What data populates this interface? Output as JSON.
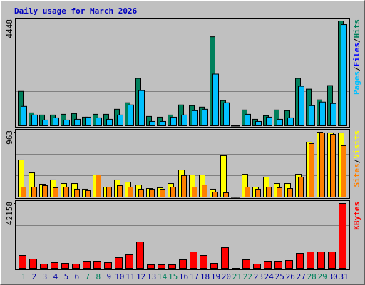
{
  "title": "Daily usage for March 2026",
  "separator": "/",
  "chart_data": [
    {
      "type": "bar",
      "ylim": [
        0,
        4448
      ],
      "yticks": [
        4448
      ],
      "legend": [
        {
          "name": "Pages",
          "color": "#00C0FF"
        },
        {
          "name": "Files",
          "color": "#0000FF"
        },
        {
          "name": "Hits",
          "color": "#00805C"
        }
      ],
      "series": [
        {
          "color": "#00805C",
          "values": [
            1480,
            575,
            484,
            484,
            514,
            545,
            393,
            514,
            514,
            726,
            999,
            2027,
            424,
            393,
            484,
            908,
            878,
            817,
            3782,
            1090,
            30,
            696,
            303,
            454,
            696,
            666,
            2027,
            1574,
            1120,
            1726,
            4448
          ]
        },
        {
          "color": "#00C0FF",
          "values": [
            847,
            484,
            272,
            363,
            272,
            303,
            393,
            363,
            303,
            484,
            908,
            1514,
            212,
            212,
            393,
            484,
            666,
            726,
            2209,
            999,
            30,
            514,
            212,
            393,
            303,
            363,
            1696,
            878,
            1030,
            969,
            4296
          ]
        }
      ]
    },
    {
      "type": "bar",
      "ylim": [
        0,
        963
      ],
      "yticks": [
        963
      ],
      "legend": [
        {
          "name": "Sites",
          "color": "#FF8000"
        },
        {
          "name": "Visits",
          "color": "#FFFF00"
        }
      ],
      "series": [
        {
          "color": "#FFFF00",
          "values": [
            555,
            366,
            199,
            262,
            209,
            209,
            126,
            335,
            157,
            262,
            230,
            188,
            136,
            147,
            209,
            408,
            335,
            335,
            126,
            618,
            10,
            345,
            157,
            304,
            209,
            209,
            345,
            817,
            963,
            953,
            953
          ]
        },
        {
          "color": "#FF8000",
          "values": [
            157,
            157,
            178,
            147,
            157,
            126,
            105,
            335,
            157,
            178,
            157,
            126,
            126,
            126,
            157,
            325,
            157,
            188,
            84,
            73,
            10,
            157,
            126,
            157,
            147,
            136,
            304,
            796,
            953,
            932,
            764
          ]
        }
      ]
    },
    {
      "type": "bar",
      "ylim": [
        0,
        42158
      ],
      "yticks": [
        42158
      ],
      "legend": [
        {
          "name": "KBytes",
          "color": "#FF0000"
        }
      ],
      "series": [
        {
          "color": "#FF0000",
          "values": [
            8702,
            6412,
            3206,
            4122,
            3664,
            3206,
            4580,
            4580,
            4122,
            7328,
            9160,
            17404,
            2748,
            2748,
            2748,
            5954,
            10992,
            8702,
            3664,
            13740,
            458,
            5954,
            3206,
            4580,
            4580,
            5496,
            10076,
            10992,
            10992,
            10992,
            42158
          ]
        }
      ],
      "categories": [
        "1",
        "2",
        "3",
        "4",
        "5",
        "6",
        "7",
        "8",
        "9",
        "10",
        "11",
        "12",
        "13",
        "14",
        "15",
        "16",
        "17",
        "18",
        "19",
        "20",
        "21",
        "22",
        "23",
        "24",
        "25",
        "26",
        "27",
        "28",
        "29",
        "30",
        "31"
      ],
      "category_colors": [
        "#00805C",
        "#0000A0",
        "#0000A0",
        "#0000A0",
        "#0000A0",
        "#0000A0",
        "#00805C",
        "#00805C",
        "#0000A0",
        "#0000A0",
        "#0000A0",
        "#0000A0",
        "#0000A0",
        "#00805C",
        "#00805C",
        "#0000A0",
        "#0000A0",
        "#0000A0",
        "#0000A0",
        "#0000A0",
        "#00805C",
        "#00805C",
        "#0000A0",
        "#0000A0",
        "#0000A0",
        "#0000A0",
        "#0000A0",
        "#00805C",
        "#00805C",
        "#0000A0",
        "#0000A0"
      ]
    }
  ]
}
